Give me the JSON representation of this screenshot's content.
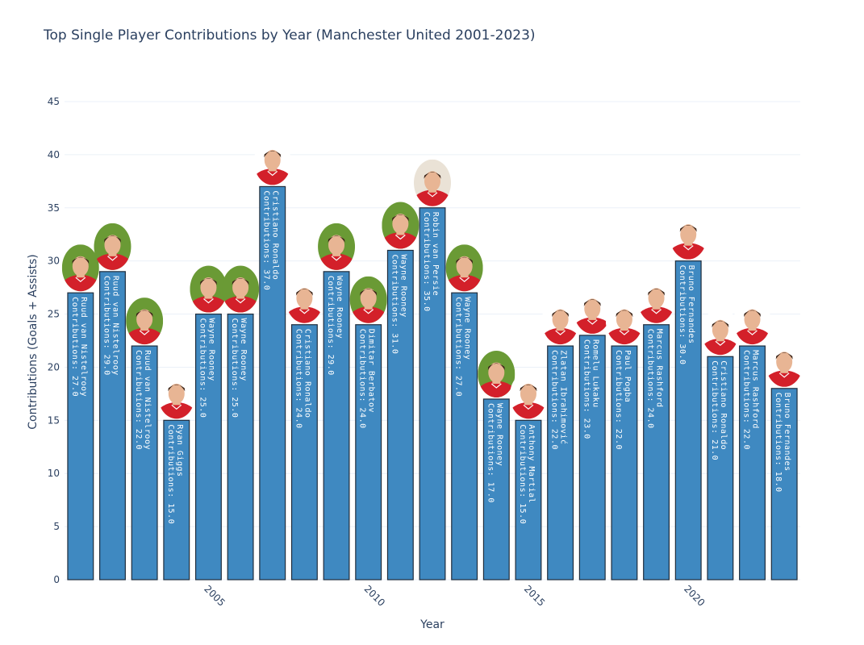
{
  "chart_data": {
    "type": "bar",
    "title": "Top Single Player Contributions by Year (Manchester United 2001-2023)",
    "xlabel": "Year",
    "ylabel": "Contributions (Goals + Assists)",
    "ylim": [
      0,
      46
    ],
    "yticks": [
      0,
      5,
      10,
      15,
      20,
      25,
      30,
      35,
      40,
      45
    ],
    "xticks": [
      2005,
      2010,
      2015,
      2020
    ],
    "grid": true,
    "label_prefix": "Contributions: ",
    "bar_color": "#3f89c1",
    "bar_edge": "#1f2d3d",
    "bars": [
      {
        "year": 2001,
        "player": "Ruud van Nistelrooy",
        "value": 27.0
      },
      {
        "year": 2002,
        "player": "Ruud van Nistelrooy",
        "value": 29.0
      },
      {
        "year": 2003,
        "player": "Ruud van Nistelrooy",
        "value": 22.0
      },
      {
        "year": 2004,
        "player": "Ryan Giggs",
        "value": 15.0
      },
      {
        "year": 2005,
        "player": "Wayne Rooney",
        "value": 25.0
      },
      {
        "year": 2006,
        "player": "Wayne Rooney",
        "value": 25.0
      },
      {
        "year": 2007,
        "player": "Cristiano Ronaldo",
        "value": 37.0
      },
      {
        "year": 2008,
        "player": "Cristiano Ronaldo",
        "value": 24.0
      },
      {
        "year": 2009,
        "player": "Wayne Rooney",
        "value": 29.0
      },
      {
        "year": 2010,
        "player": "Dimitar Berbatov",
        "value": 24.0
      },
      {
        "year": 2011,
        "player": "Wayne Rooney",
        "value": 31.0
      },
      {
        "year": 2012,
        "player": "Robin van Persie",
        "value": 35.0
      },
      {
        "year": 2013,
        "player": "Wayne Rooney",
        "value": 27.0
      },
      {
        "year": 2014,
        "player": "Wayne Rooney",
        "value": 17.0
      },
      {
        "year": 2015,
        "player": "Anthony Martial",
        "value": 15.0
      },
      {
        "year": 2016,
        "player": "Zlatan Ibrahimović",
        "value": 22.0
      },
      {
        "year": 2017,
        "player": "Romelu Lukaku",
        "value": 23.0
      },
      {
        "year": 2018,
        "player": "Paul Pogba",
        "value": 22.0
      },
      {
        "year": 2019,
        "player": "Marcus Rashford",
        "value": 24.0
      },
      {
        "year": 2020,
        "player": "Bruno Fernandes",
        "value": 30.0
      },
      {
        "year": 2021,
        "player": "Cristiano Ronaldo",
        "value": 21.0
      },
      {
        "year": 2022,
        "player": "Marcus Rashford",
        "value": 22.0
      },
      {
        "year": 2023,
        "player": "Bruno Fernandes",
        "value": 18.0
      }
    ],
    "photo_palette": {
      "shirt": "#d3202a",
      "skin": "#e8b594",
      "hair": "#3a2418",
      "bg_green": "#6a9a35",
      "bg_light": "#eae2d6",
      "bg_white": "#ffffff"
    }
  }
}
